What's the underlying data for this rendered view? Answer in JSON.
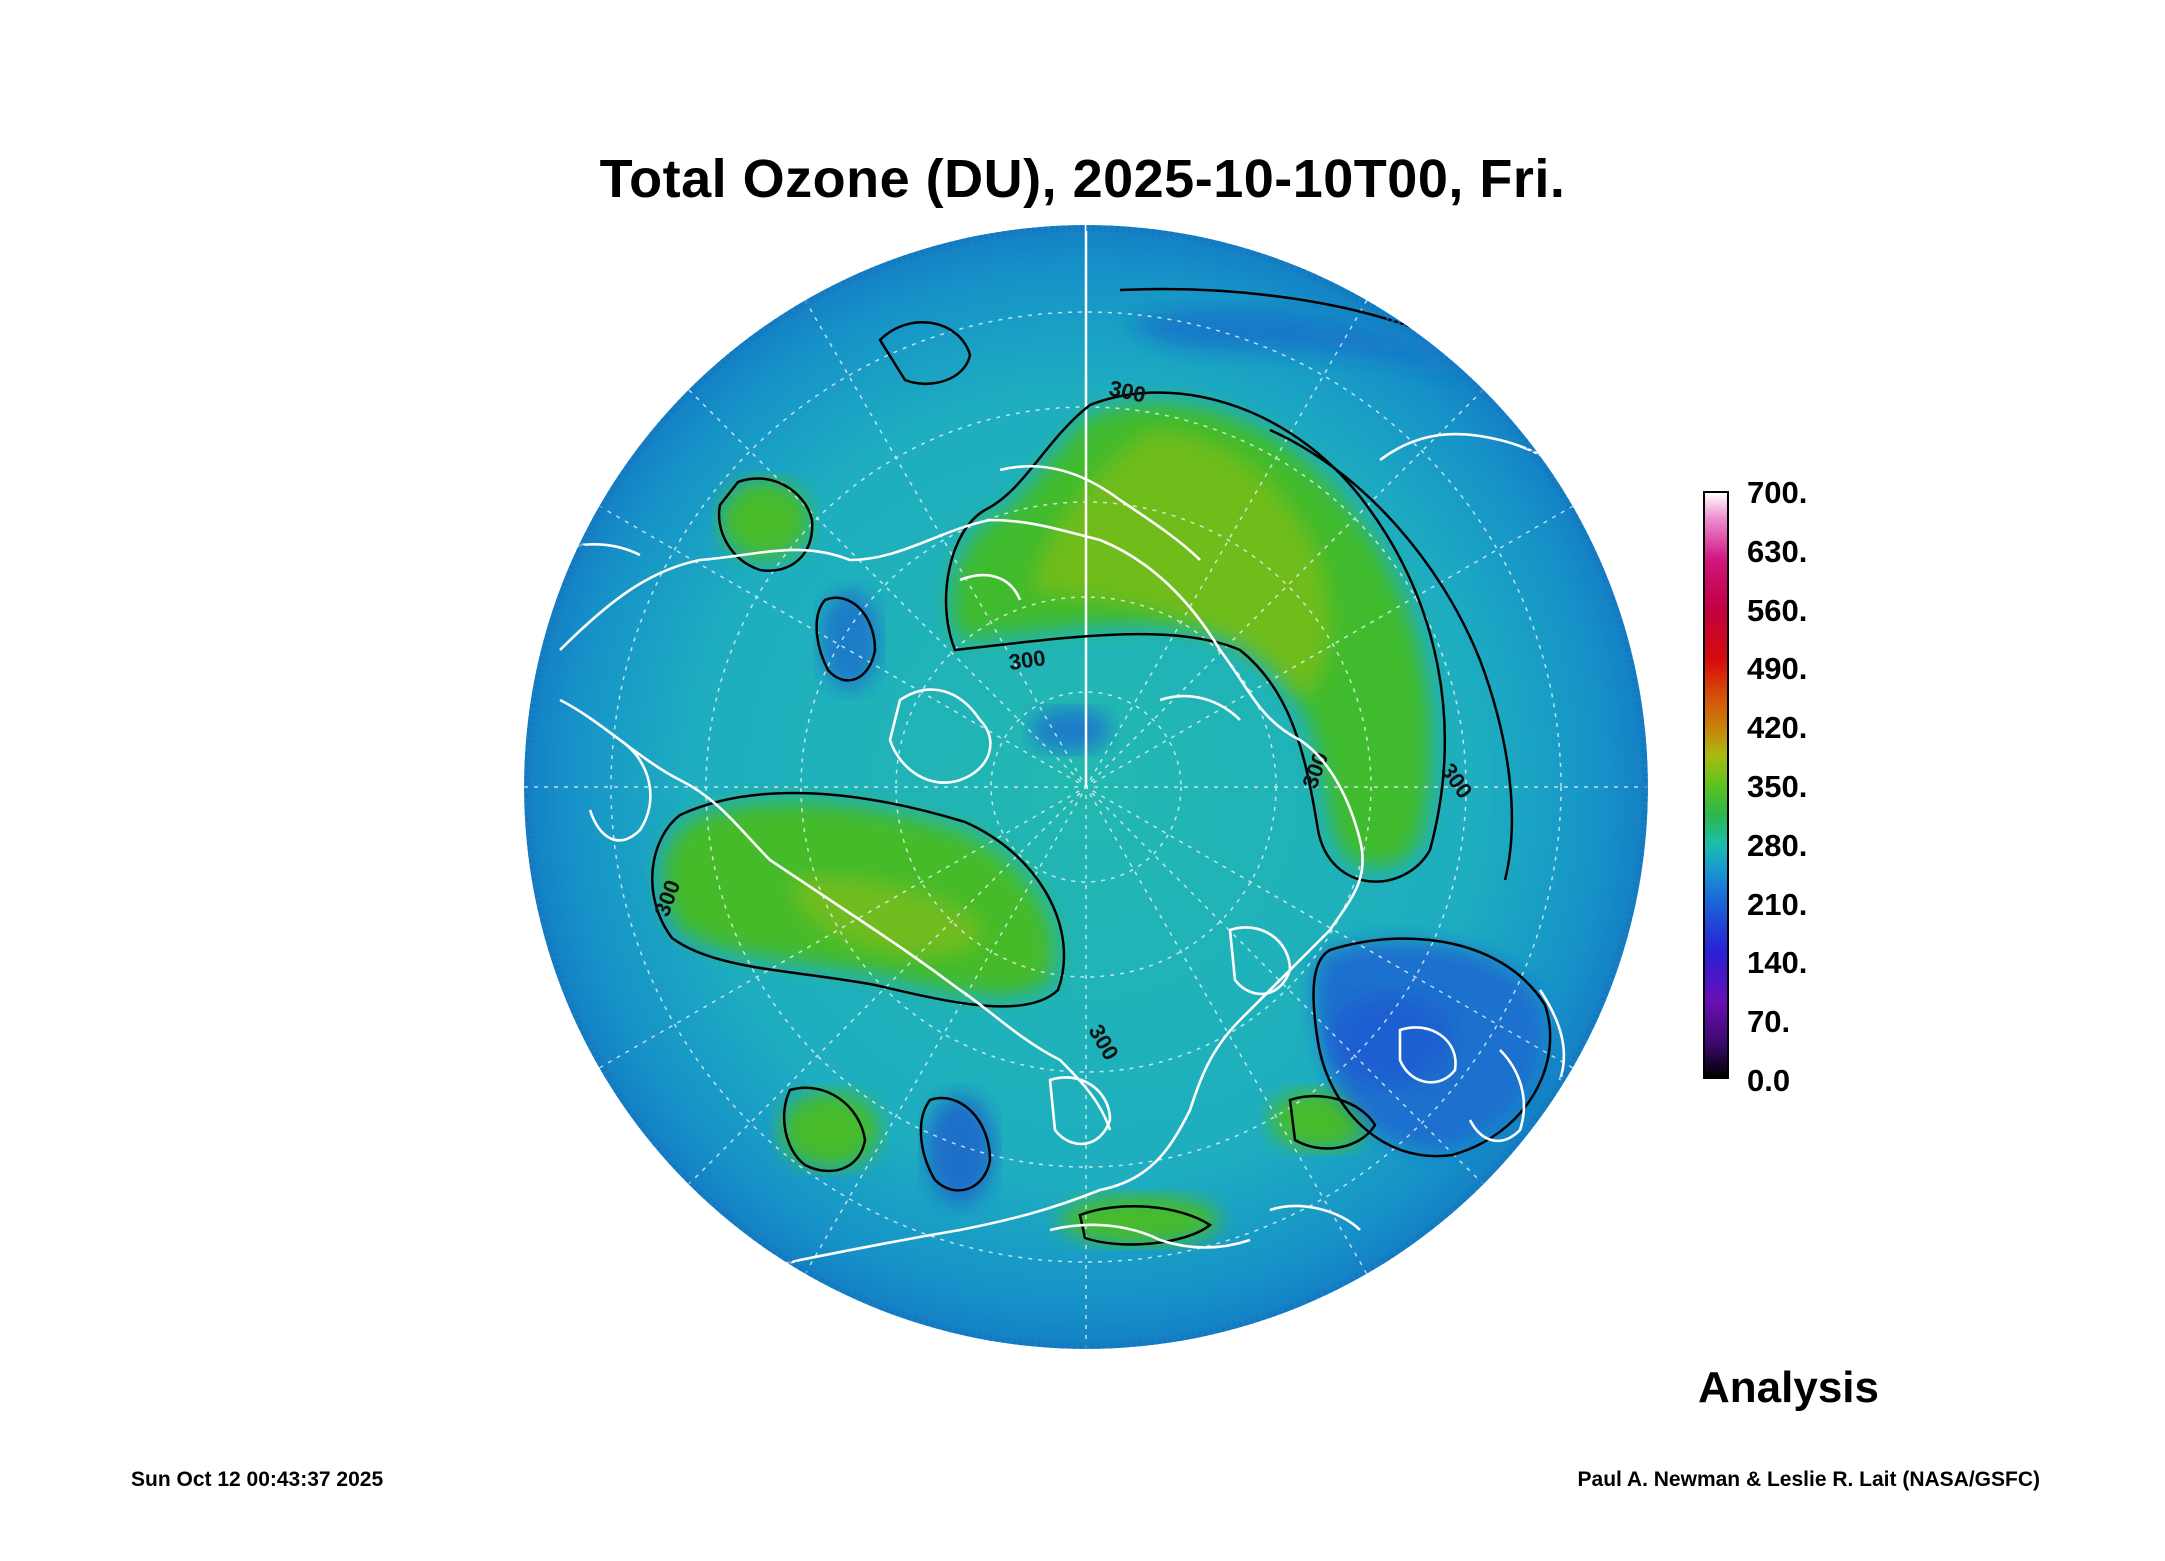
{
  "title": "Total Ozone (DU), 2025-10-10T00, Fri.",
  "colorbar": {
    "ticks": [
      "700.",
      "630.",
      "560.",
      "490.",
      "420.",
      "350.",
      "280.",
      "210.",
      "140.",
      "70.",
      "0.0"
    ],
    "range": [
      0,
      700
    ],
    "stops": [
      {
        "v": 0,
        "c": "#000000"
      },
      {
        "v": 40,
        "c": "#3b0a6b"
      },
      {
        "v": 90,
        "c": "#6a0fb5"
      },
      {
        "v": 150,
        "c": "#2a1fd6"
      },
      {
        "v": 210,
        "c": "#1a66d8"
      },
      {
        "v": 250,
        "c": "#1a9ad0"
      },
      {
        "v": 280,
        "c": "#19bfa8"
      },
      {
        "v": 315,
        "c": "#2fb64a"
      },
      {
        "v": 350,
        "c": "#5ec21e"
      },
      {
        "v": 385,
        "c": "#a7bb10"
      },
      {
        "v": 420,
        "c": "#c9800c"
      },
      {
        "v": 460,
        "c": "#d54b0a"
      },
      {
        "v": 500,
        "c": "#d60b0b"
      },
      {
        "v": 560,
        "c": "#c10040"
      },
      {
        "v": 620,
        "c": "#d0157f"
      },
      {
        "v": 670,
        "c": "#ec8fd0"
      },
      {
        "v": 700,
        "c": "#ffffff"
      }
    ]
  },
  "contour_labels": [
    {
      "text": "300"
    },
    {
      "text": "300"
    },
    {
      "text": "300"
    },
    {
      "text": "300"
    },
    {
      "text": "300"
    },
    {
      "text": "300"
    }
  ],
  "analysis_label": "Analysis",
  "timestamp": "Sun Oct 12 00:43:37 2025",
  "credit": "Paul A. Newman & Leslie R. Lait (NASA/GSFC)",
  "colors": {
    "background_ozone": "#1eb3b8",
    "high_ozone": "#3dbd2a",
    "low_ozone": "#1a7ec8",
    "contour": "#000000",
    "coastline": "#ffffff",
    "graticule": "#e8f4f4"
  }
}
